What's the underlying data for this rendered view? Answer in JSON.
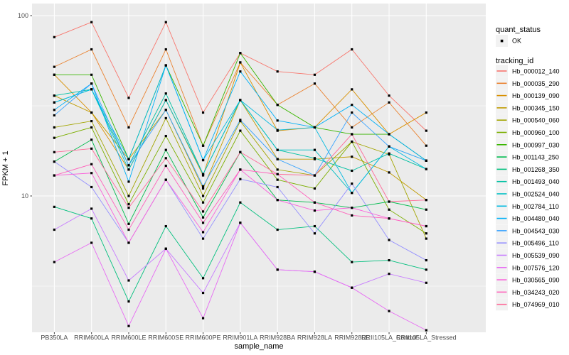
{
  "figure": {
    "background": "#FFFFFF",
    "panel_background": "#EBEBEB",
    "gridline_color": "#FFFFFF",
    "tick_color": "#333333",
    "point_color": "#000000"
  },
  "chart_data": {
    "type": "line",
    "title": "",
    "xlabel": "sample_name",
    "ylabel": "FPKM + 1",
    "y_scale": "log10",
    "ylim": [
      1.6,
      117
    ],
    "grid": "on",
    "y_major_ticks": [
      {
        "label": "100",
        "value": 100
      },
      {
        "label": "10",
        "value": 10
      }
    ],
    "y_minor_values": [
      31.62,
      3.162
    ],
    "categories": [
      "PB350LA",
      "RRIM600LA",
      "RRIM600LE",
      "RRIM600SE",
      "RRIM600PE",
      "RRIM901LA",
      "RRIM928BA",
      "RRIM928LA",
      "RRIM928LE",
      "RRII105LA_Control",
      "RRII105LA_Stressed"
    ],
    "legend": {
      "position": "right",
      "quant_title": "quant_status",
      "quant_items": [
        {
          "label": "OK",
          "marker": "point"
        }
      ],
      "tracking_title": "tracking_id"
    },
    "series": [
      {
        "name": "Hb_000012_140",
        "color": "#F8766D",
        "values": [
          76,
          92,
          35,
          92,
          29,
          62,
          49,
          47,
          65,
          36,
          23
        ]
      },
      {
        "name": "Hb_000035_290",
        "color": "#EA8331",
        "values": [
          52,
          65,
          24,
          65,
          19,
          55,
          32,
          42,
          24,
          33,
          19
        ]
      },
      {
        "name": "Hb_000139_090",
        "color": "#D89000",
        "values": [
          47,
          29,
          14,
          34,
          13,
          55,
          23,
          24,
          39,
          22,
          29
        ]
      },
      {
        "name": "Hb_000345_150",
        "color": "#C09B00",
        "values": [
          36,
          29,
          16,
          30,
          11,
          34,
          16,
          16,
          16.5,
          13.5,
          9.5
        ]
      },
      {
        "name": "Hb_000540_060",
        "color": "#A3A500",
        "values": [
          24,
          26,
          10,
          27,
          10,
          26,
          14,
          13,
          20,
          17,
          5.8
        ]
      },
      {
        "name": "Hb_000960_100",
        "color": "#7CAE00",
        "values": [
          21,
          24,
          9,
          21.5,
          9.2,
          23,
          12.3,
          11,
          20,
          8.4,
          6.2
        ]
      },
      {
        "name": "Hb_000997_030",
        "color": "#39B600",
        "values": [
          47,
          47,
          16,
          53,
          19,
          62,
          32,
          24,
          22,
          22,
          15.7
        ]
      },
      {
        "name": "Hb_001143_250",
        "color": "#00BB4E",
        "values": [
          15.5,
          20.5,
          7,
          18,
          7.6,
          17.5,
          9.5,
          9.2,
          8.6,
          9.3,
          8.4
        ]
      },
      {
        "name": "Hb_001268_350",
        "color": "#00BF7D",
        "values": [
          8.7,
          7.5,
          2.6,
          6.8,
          3.5,
          9.2,
          6.5,
          6.8,
          4.3,
          4.4,
          3.9
        ]
      },
      {
        "name": "Hb_001493_040",
        "color": "#00C1A3",
        "values": [
          36,
          39,
          14.8,
          37,
          13.2,
          34,
          18,
          16.2,
          13.8,
          17.2,
          14.1
        ]
      },
      {
        "name": "Hb_002524_040",
        "color": "#00BFC4",
        "values": [
          33,
          39,
          14,
          34,
          13.2,
          34,
          18,
          18,
          10.4,
          18.8,
          15.7
        ]
      },
      {
        "name": "Hb_002784_110",
        "color": "#00BAE0",
        "values": [
          33,
          39,
          16,
          53,
          15.8,
          34,
          23.2,
          24,
          10.4,
          18.8,
          14.1
        ]
      },
      {
        "name": "Hb_004480_040",
        "color": "#00B0F6",
        "values": [
          30,
          42,
          12,
          53,
          15.8,
          49,
          26.2,
          24,
          32,
          22,
          15.7
        ]
      },
      {
        "name": "Hb_004543_030",
        "color": "#35A2FF",
        "values": [
          28,
          42,
          14.8,
          30,
          11.3,
          26.4,
          16,
          13,
          29,
          18.8,
          15.7
        ]
      },
      {
        "name": "Hb_005496_110",
        "color": "#9590FF",
        "values": [
          15.5,
          11.2,
          5.5,
          12.3,
          5.8,
          12.4,
          11.2,
          6.2,
          11.7,
          5.7,
          4.4
        ]
      },
      {
        "name": "Hb_005539_090",
        "color": "#C77CFF",
        "values": [
          6.5,
          8.5,
          3.4,
          5.1,
          2.9,
          7.1,
          3.9,
          3.8,
          3.1,
          3.7,
          3.3
        ]
      },
      {
        "name": "Hb_007576_120",
        "color": "#E76BF3",
        "values": [
          4.3,
          5.5,
          1.9,
          5.1,
          2.1,
          7.1,
          3.9,
          3.8,
          3.1,
          2.3,
          1.8
        ]
      },
      {
        "name": "Hb_030565_090",
        "color": "#FA62DB",
        "values": [
          13,
          13.4,
          5.5,
          12.3,
          6.3,
          14,
          9.5,
          8.3,
          8.6,
          7.5,
          6.8
        ]
      },
      {
        "name": "Hb_034243_020",
        "color": "#FF62BC",
        "values": [
          13,
          15,
          6.5,
          14.7,
          7.1,
          14,
          13.2,
          9.2,
          7.8,
          7.5,
          6.8
        ]
      },
      {
        "name": "Hb_074969_010",
        "color": "#FF6A98",
        "values": [
          17.5,
          18.3,
          8.6,
          16.2,
          8.2,
          17.5,
          13.2,
          13,
          22,
          9.3,
          9.5
        ]
      }
    ]
  }
}
